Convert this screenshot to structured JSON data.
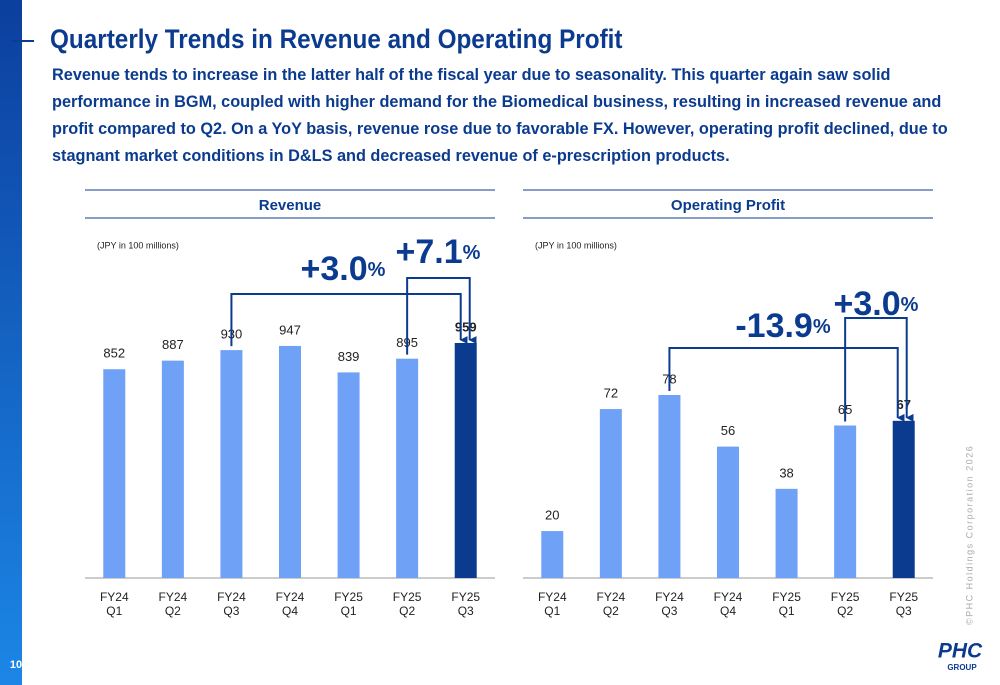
{
  "header": {
    "title": "Quarterly Trends in Revenue and Operating Profit",
    "subtitle": "Revenue tends to increase in the latter half of the fiscal year due to seasonality. This quarter again saw solid performance in BGM, coupled with higher demand for the Biomedical business, resulting in increased revenue and profit compared to Q2. On a YoY basis, revenue rose due to favorable FX. However, operating profit declined, due to stagnant market conditions in D&LS and decreased revenue of e-prescription products."
  },
  "footer": {
    "page_number": "10",
    "copyright": "©PHC Holdings Corporation 2026",
    "logo": "PHC",
    "logo_subtitle": "GROUP"
  },
  "chart_data": [
    {
      "type": "bar",
      "title": "Revenue",
      "unit_note": "(JPY in 100 millions)",
      "categories": [
        [
          "FY24",
          "Q1"
        ],
        [
          "FY24",
          "Q2"
        ],
        [
          "FY24",
          "Q3"
        ],
        [
          "FY24",
          "Q4"
        ],
        [
          "FY25",
          "Q1"
        ],
        [
          "FY25",
          "Q2"
        ],
        [
          "FY25",
          "Q3"
        ]
      ],
      "values": [
        852,
        887,
        930,
        947,
        839,
        895,
        959
      ],
      "color": "#6fa1f6",
      "highlight_color": "#0b3b8f",
      "annotations": [
        {
          "text": "+3.0",
          "unit": "%"
        },
        {
          "text": "+7.1",
          "unit": "%"
        }
      ]
    },
    {
      "type": "bar",
      "title": "Operating Profit",
      "unit_note": "(JPY in 100 millions)",
      "categories": [
        [
          "FY24",
          "Q1"
        ],
        [
          "FY24",
          "Q2"
        ],
        [
          "FY24",
          "Q3"
        ],
        [
          "FY24",
          "Q4"
        ],
        [
          "FY25",
          "Q1"
        ],
        [
          "FY25",
          "Q2"
        ],
        [
          "FY25",
          "Q3"
        ]
      ],
      "values": [
        20,
        72,
        78,
        56,
        38,
        65,
        67
      ],
      "color": "#6fa1f6",
      "highlight_color": "#0b3b8f",
      "annotations": [
        {
          "text": "-13.9",
          "unit": "%"
        },
        {
          "text": "+3.0",
          "unit": "%"
        }
      ]
    }
  ]
}
